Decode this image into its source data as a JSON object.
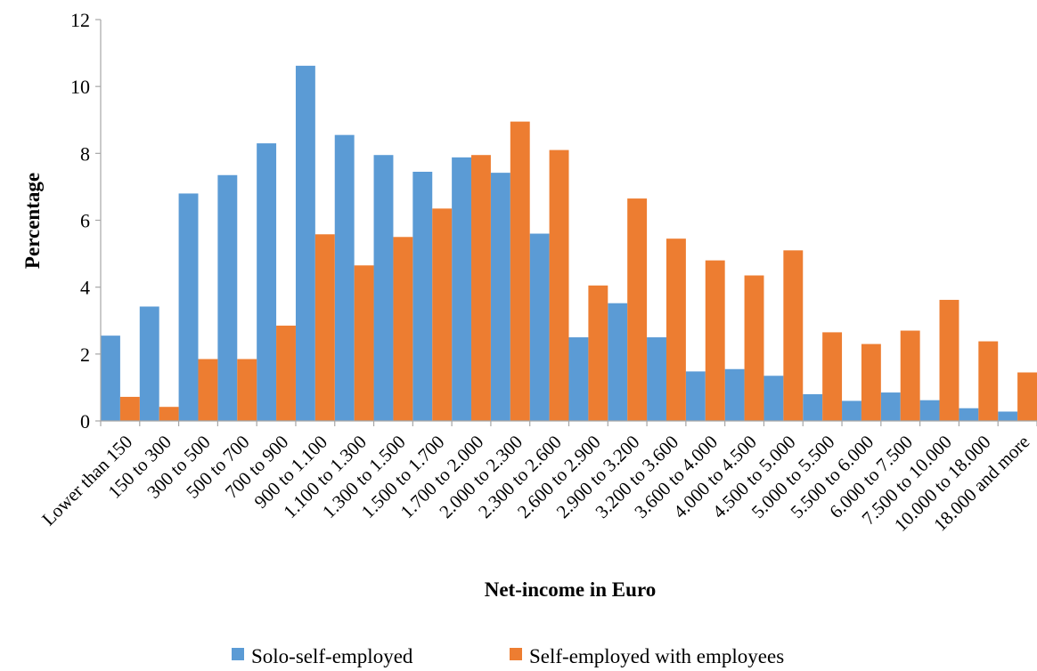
{
  "colors": {
    "series_1": "#5b9bd5",
    "series_2": "#ed7d31",
    "axis": "#a6a6a6"
  },
  "chart_data": {
    "type": "bar",
    "title": "",
    "xlabel": "Net-income in Euro",
    "ylabel": "Percentage",
    "ylim": [
      0,
      12
    ],
    "yticks": [
      0,
      2,
      4,
      6,
      8,
      10,
      12
    ],
    "grid": false,
    "legend_position": "bottom",
    "categories": [
      "Lower than 150",
      "150 to 300",
      "300 to 500",
      "500 to 700",
      "700 to 900",
      "900 to 1.100",
      "1.100 to 1.300",
      "1.300 to 1.500",
      "1.500 to 1.700",
      "1.700 to 2.000",
      "2.000 to 2.300",
      "2.300 to 2.600",
      "2.600 to 2.900",
      "2.900 to 3.200",
      "3.200 to 3.600",
      "3.600 to 4.000",
      "4.000 to 4.500",
      "4.500 to 5.000",
      "5.000 to 5.500",
      "5.500 to 6.000",
      "6.000 to 7.500",
      "7.500 to 10.000",
      "10.000 to 18.000",
      "18.000 and more"
    ],
    "series": [
      {
        "name": "Solo-self-employed",
        "values": [
          2.55,
          3.42,
          6.8,
          7.35,
          8.3,
          10.62,
          8.55,
          7.95,
          7.45,
          7.88,
          7.42,
          5.6,
          2.5,
          3.52,
          2.5,
          1.48,
          1.55,
          1.35,
          0.8,
          0.6,
          0.85,
          0.62,
          0.38,
          0.28
        ]
      },
      {
        "name": "Self-employed with employees",
        "values": [
          0.72,
          0.42,
          1.85,
          1.85,
          2.85,
          5.58,
          4.65,
          5.5,
          6.35,
          7.95,
          8.95,
          8.1,
          4.05,
          6.65,
          5.45,
          4.8,
          4.35,
          5.1,
          2.65,
          2.3,
          2.7,
          3.62,
          2.38,
          1.45
        ]
      }
    ]
  }
}
